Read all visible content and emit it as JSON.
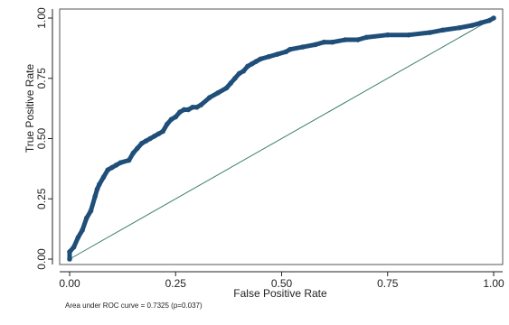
{
  "chart_data": {
    "type": "line",
    "xlabel": "False Positive Rate",
    "ylabel": "True Positive Rate",
    "xlim": [
      0,
      1
    ],
    "ylim": [
      0,
      1
    ],
    "x_ticks": [
      "0.00",
      "0.25",
      "0.50",
      "0.75",
      "1.00"
    ],
    "y_ticks": [
      "0.00",
      "0.25",
      "0.50",
      "0.75",
      "1.00"
    ],
    "grid": false,
    "legend": "none",
    "annotation": "Area under ROC curve = 0.7325 (p=0.037)",
    "series": [
      {
        "x": [
          0.0,
          0.0,
          0.01,
          0.02,
          0.03,
          0.04,
          0.05,
          0.06,
          0.065,
          0.07,
          0.08,
          0.09,
          0.1,
          0.11,
          0.12,
          0.14,
          0.15,
          0.16,
          0.17,
          0.18,
          0.19,
          0.2,
          0.21,
          0.22,
          0.23,
          0.24,
          0.25,
          0.26,
          0.27,
          0.28,
          0.29,
          0.3,
          0.31,
          0.33,
          0.35,
          0.37,
          0.38,
          0.39,
          0.4,
          0.41,
          0.42,
          0.43,
          0.44,
          0.45,
          0.47,
          0.49,
          0.51,
          0.52,
          0.55,
          0.58,
          0.6,
          0.62,
          0.65,
          0.68,
          0.7,
          0.75,
          0.8,
          0.85,
          0.88,
          0.92,
          0.95,
          0.97,
          0.99,
          1.0
        ],
        "y": [
          0.0,
          0.03,
          0.05,
          0.09,
          0.12,
          0.17,
          0.2,
          0.26,
          0.29,
          0.31,
          0.34,
          0.37,
          0.38,
          0.39,
          0.4,
          0.41,
          0.44,
          0.46,
          0.48,
          0.49,
          0.5,
          0.51,
          0.52,
          0.53,
          0.56,
          0.58,
          0.59,
          0.61,
          0.62,
          0.62,
          0.63,
          0.63,
          0.64,
          0.67,
          0.69,
          0.71,
          0.73,
          0.75,
          0.77,
          0.78,
          0.8,
          0.81,
          0.82,
          0.83,
          0.84,
          0.85,
          0.86,
          0.87,
          0.88,
          0.89,
          0.9,
          0.9,
          0.91,
          0.91,
          0.92,
          0.93,
          0.93,
          0.94,
          0.95,
          0.96,
          0.97,
          0.98,
          0.99,
          1.0
        ],
        "color": "#1f4e79"
      },
      {
        "x": [
          0,
          1
        ],
        "y": [
          0,
          1
        ],
        "color": "#3a7d6a"
      }
    ]
  }
}
